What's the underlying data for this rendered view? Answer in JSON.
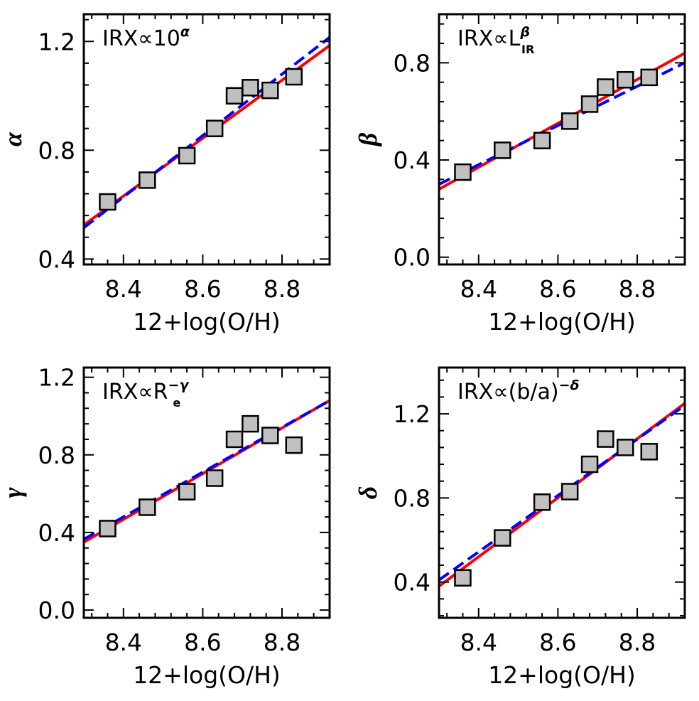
{
  "chart_data": [
    {
      "type": "scatter",
      "annotation": {
        "base": "IRX∝10",
        "sup": "α",
        "sub": "",
        "tail": ""
      },
      "xlabel": "12+log(O/H)",
      "ylabel": "α",
      "xlim": [
        8.3,
        8.92
      ],
      "ylim": [
        0.38,
        1.3
      ],
      "xticks": [
        "8.4",
        "8.6",
        "8.8"
      ],
      "yticks": [
        "0.4",
        "0.8",
        "1.2"
      ],
      "series": [
        {
          "name": "data",
          "style": "square",
          "color": "#c0c0c0",
          "points": [
            [
              8.36,
              0.61
            ],
            [
              8.46,
              0.69
            ],
            [
              8.56,
              0.78
            ],
            [
              8.63,
              0.88
            ],
            [
              8.68,
              1.0
            ],
            [
              8.72,
              1.03
            ],
            [
              8.77,
              1.02
            ],
            [
              8.83,
              1.07
            ]
          ]
        },
        {
          "name": "solid fit",
          "style": "solid",
          "color": "#ff0000",
          "points": [
            [
              8.3,
              0.525
            ],
            [
              8.92,
              1.185
            ]
          ]
        },
        {
          "name": "dashed fit",
          "style": "dashed",
          "color": "#0000ff",
          "points": [
            [
              8.3,
              0.515
            ],
            [
              8.92,
              1.215
            ]
          ]
        }
      ]
    },
    {
      "type": "scatter",
      "annotation": {
        "base": "IRX∝L",
        "sup": "β",
        "sub": "IR",
        "tail": ""
      },
      "xlabel": "12+log(O/H)",
      "ylabel": "β",
      "xlim": [
        8.3,
        8.92
      ],
      "ylim": [
        -0.03,
        1.0
      ],
      "xticks": [
        "8.4",
        "8.6",
        "8.8"
      ],
      "yticks": [
        "0.0",
        "0.4",
        "0.8"
      ],
      "series": [
        {
          "name": "data",
          "style": "square",
          "color": "#c0c0c0",
          "points": [
            [
              8.36,
              0.35
            ],
            [
              8.46,
              0.44
            ],
            [
              8.56,
              0.48
            ],
            [
              8.63,
              0.56
            ],
            [
              8.68,
              0.63
            ],
            [
              8.72,
              0.7
            ],
            [
              8.77,
              0.73
            ],
            [
              8.83,
              0.74
            ]
          ]
        },
        {
          "name": "solid fit",
          "style": "solid",
          "color": "#ff0000",
          "points": [
            [
              8.3,
              0.28
            ],
            [
              8.92,
              0.84
            ]
          ]
        },
        {
          "name": "dashed fit",
          "style": "dashed",
          "color": "#0000ff",
          "points": [
            [
              8.3,
              0.3
            ],
            [
              8.92,
              0.8
            ]
          ]
        }
      ]
    },
    {
      "type": "scatter",
      "annotation": {
        "base": "IRX∝R",
        "sup": "−γ",
        "sub": "e",
        "tail": ""
      },
      "xlabel": "12+log(O/H)",
      "ylabel": "γ",
      "xlim": [
        8.3,
        8.92
      ],
      "ylim": [
        -0.04,
        1.25
      ],
      "xticks": [
        "8.4",
        "8.6",
        "8.8"
      ],
      "yticks": [
        "0.0",
        "0.4",
        "0.8",
        "1.2"
      ],
      "series": [
        {
          "name": "data",
          "style": "square",
          "color": "#c0c0c0",
          "points": [
            [
              8.36,
              0.42
            ],
            [
              8.46,
              0.53
            ],
            [
              8.56,
              0.61
            ],
            [
              8.63,
              0.68
            ],
            [
              8.68,
              0.88
            ],
            [
              8.72,
              0.96
            ],
            [
              8.77,
              0.9
            ],
            [
              8.83,
              0.85
            ]
          ]
        },
        {
          "name": "solid fit",
          "style": "solid",
          "color": "#ff0000",
          "points": [
            [
              8.3,
              0.35
            ],
            [
              8.92,
              1.08
            ]
          ]
        },
        {
          "name": "dashed fit",
          "style": "dashed",
          "color": "#0000ff",
          "points": [
            [
              8.3,
              0.365
            ],
            [
              8.92,
              1.08
            ]
          ]
        }
      ]
    },
    {
      "type": "scatter",
      "annotation": {
        "base": "IRX∝(b/a)",
        "sup": "−δ",
        "sub": "",
        "tail": ""
      },
      "xlabel": "12+log(O/H)",
      "ylabel": "δ",
      "xlim": [
        8.3,
        8.92
      ],
      "ylim": [
        0.23,
        1.42
      ],
      "xticks": [
        "8.4",
        "8.6",
        "8.8"
      ],
      "yticks": [
        "0.4",
        "0.8",
        "1.2"
      ],
      "series": [
        {
          "name": "data",
          "style": "square",
          "color": "#c0c0c0",
          "points": [
            [
              8.36,
              0.42
            ],
            [
              8.46,
              0.61
            ],
            [
              8.56,
              0.78
            ],
            [
              8.63,
              0.83
            ],
            [
              8.68,
              0.96
            ],
            [
              8.72,
              1.08
            ],
            [
              8.77,
              1.04
            ],
            [
              8.83,
              1.02
            ]
          ]
        },
        {
          "name": "solid fit",
          "style": "solid",
          "color": "#ff0000",
          "points": [
            [
              8.3,
              0.38
            ],
            [
              8.92,
              1.25
            ]
          ]
        },
        {
          "name": "dashed fit",
          "style": "dashed",
          "color": "#0000ff",
          "points": [
            [
              8.3,
              0.41
            ],
            [
              8.92,
              1.24
            ]
          ]
        }
      ]
    }
  ]
}
